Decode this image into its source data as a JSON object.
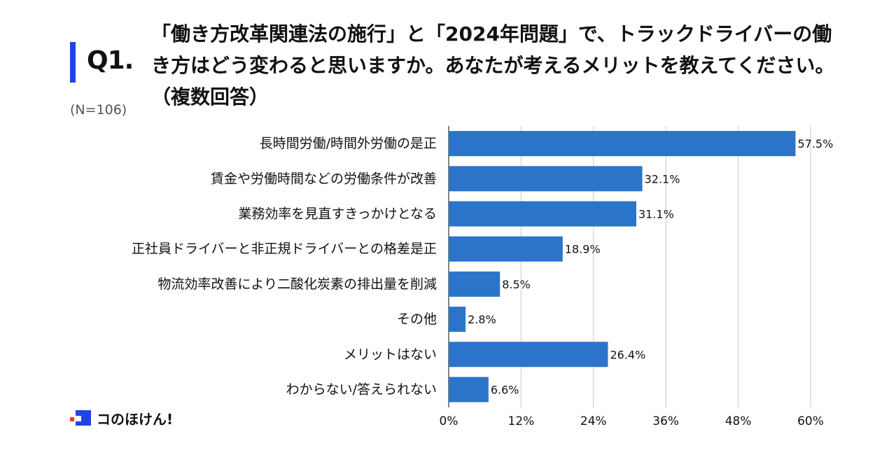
{
  "header": {
    "q_number": "Q1.",
    "question": "「働き方改革関連法の施行」と「2024年問題」で、トラックドライバーの働き方はどう変わると思いますか。あなたが考えるメリットを教えてください。（複数回答）",
    "sample_size": "(N=106)"
  },
  "logo": {
    "text": "コのほけん!",
    "mark_color": "#1f44e6",
    "dot_color": "#e8402f"
  },
  "chart_data": {
    "type": "bar",
    "orientation": "horizontal",
    "categories": [
      "長時間労働/時間外労働の是正",
      "賃金や労働時間などの労働条件が改善",
      "業務効率を見直すきっかけとなる",
      "正社員ドライバーと非正規ドライバーとの格差是正",
      "物流効率改善により二酸化炭素の排出量を削減",
      "その他",
      "メリットはない",
      "わからない/答えられない"
    ],
    "values": [
      57.5,
      32.1,
      31.1,
      18.9,
      8.5,
      2.8,
      26.4,
      6.6
    ],
    "value_labels": [
      "57.5%",
      "32.1%",
      "31.1%",
      "18.9%",
      "8.5%",
      "2.8%",
      "26.4%",
      "6.6%"
    ],
    "xlim": [
      0,
      60
    ],
    "ticks": [
      0,
      12,
      24,
      36,
      48,
      60
    ],
    "tick_labels": [
      "0%",
      "12%",
      "24%",
      "36%",
      "48%",
      "60%"
    ],
    "grid": true,
    "bar_color": "#2b74c9",
    "grid_color": "#c8c8c8"
  }
}
